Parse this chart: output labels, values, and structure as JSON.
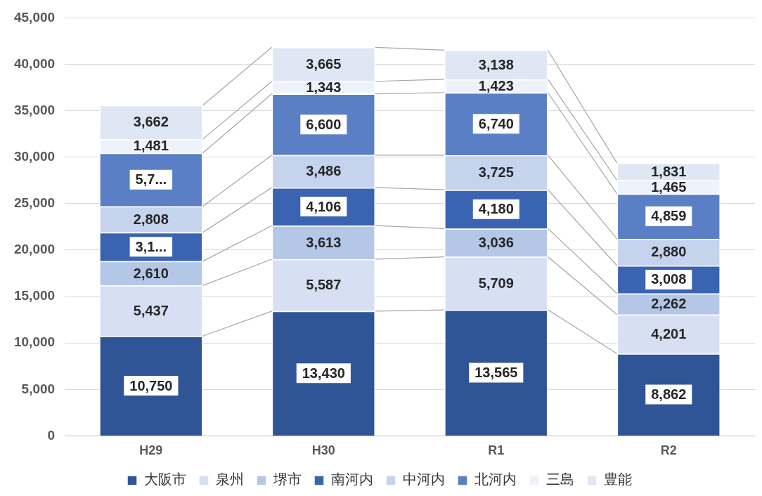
{
  "chart_data": {
    "type": "bar",
    "stacked": true,
    "categories": [
      "H29",
      "H30",
      "R1",
      "R2"
    ],
    "series": [
      {
        "name": "大阪市",
        "color": "#2f5597",
        "values": [
          10750,
          13430,
          13565,
          8862
        ],
        "value_labels": [
          "10,750",
          "13,430",
          "13,565",
          "8,862"
        ]
      },
      {
        "name": "泉州",
        "color": "#d6e0f2",
        "values": [
          5437,
          5587,
          5709,
          4201
        ],
        "value_labels": [
          "5,437",
          "5,587",
          "5,709",
          "4,201"
        ]
      },
      {
        "name": "堺市",
        "color": "#b4c7e7",
        "values": [
          2610,
          3613,
          3036,
          2262
        ],
        "value_labels": [
          "2,610",
          "3,613",
          "3,036",
          "2,262"
        ]
      },
      {
        "name": "南河内",
        "color": "#3a64b2",
        "values": [
          3100,
          4106,
          4180,
          3008
        ],
        "value_labels": [
          "3,1...",
          "4,106",
          "4,180",
          "3,008"
        ]
      },
      {
        "name": "中河内",
        "color": "#c5d3ec",
        "values": [
          2808,
          3486,
          3725,
          2880
        ],
        "value_labels": [
          "2,808",
          "3,486",
          "3,725",
          "2,880"
        ]
      },
      {
        "name": "北河内",
        "color": "#5a7fc5",
        "values": [
          5750,
          6600,
          6740,
          4859
        ],
        "value_labels": [
          "5,7...",
          "6,600",
          "6,740",
          "4,859"
        ]
      },
      {
        "name": "三島",
        "color": "#eef3fb",
        "values": [
          1481,
          1343,
          1423,
          1465
        ],
        "value_labels": [
          "1,481",
          "1,343",
          "1,423",
          "1,465"
        ]
      },
      {
        "name": "豊能",
        "color": "#dfe7f5",
        "values": [
          3662,
          3665,
          3138,
          1831
        ],
        "value_labels": [
          "3,662",
          "3,665",
          "3,138",
          "1,831"
        ]
      }
    ],
    "ylim": [
      0,
      45000
    ],
    "yticks": [
      {
        "value": 0,
        "label": "0"
      },
      {
        "value": 5000,
        "label": "5,000"
      },
      {
        "value": 10000,
        "label": "10,000"
      },
      {
        "value": 15000,
        "label": "15,000"
      },
      {
        "value": 20000,
        "label": "20,000"
      },
      {
        "value": 25000,
        "label": "25,000"
      },
      {
        "value": 30000,
        "label": "30,000"
      },
      {
        "value": 35000,
        "label": "35,000"
      },
      {
        "value": 40000,
        "label": "40,000"
      },
      {
        "value": 45000,
        "label": "45,000"
      }
    ],
    "grid": "y",
    "legend": "bottom",
    "data_labels": true
  }
}
